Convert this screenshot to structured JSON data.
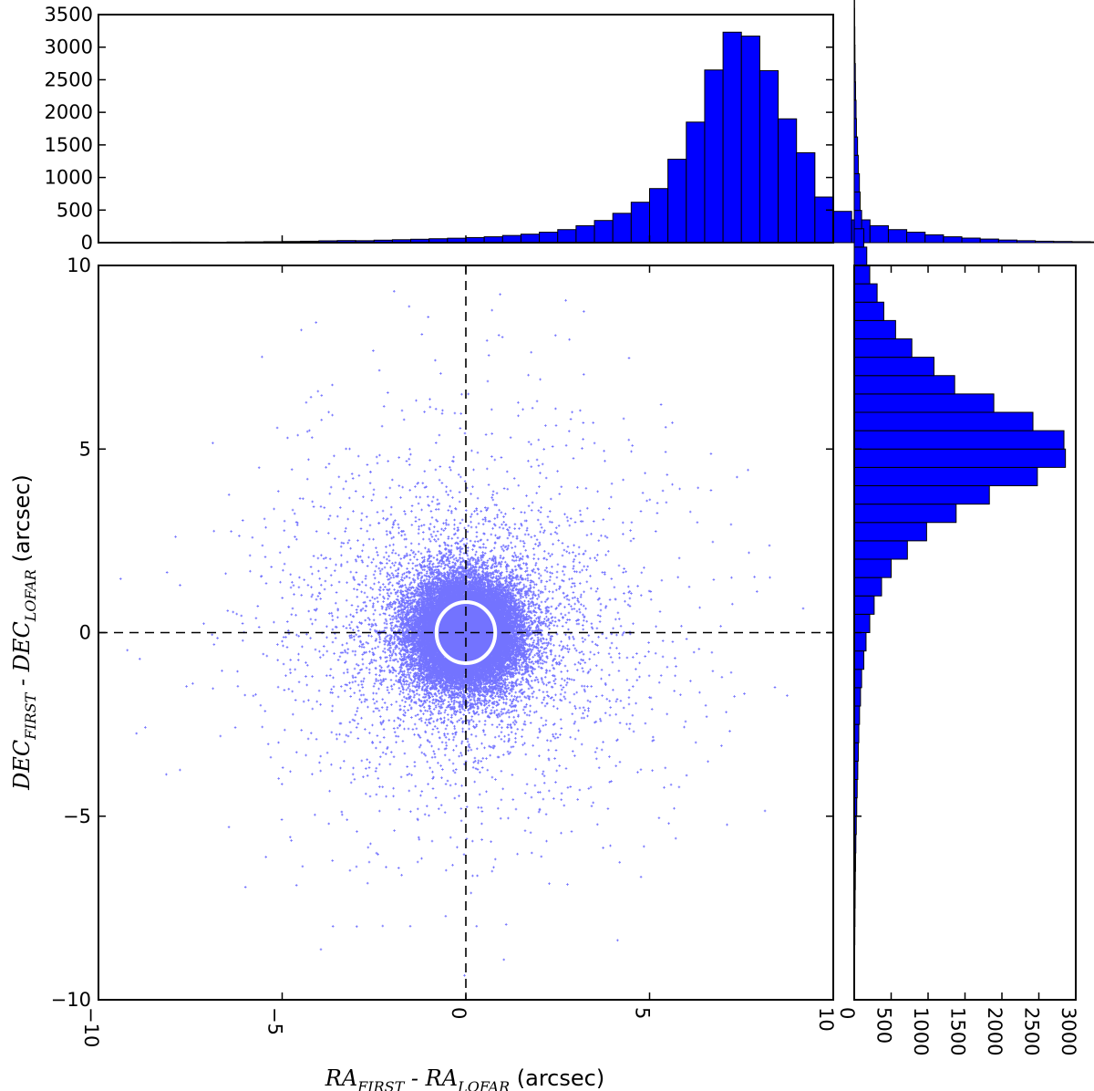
{
  "chart_data": [
    {
      "type": "scatter",
      "name": "positional-offsets",
      "xlabel": {
        "main": "RA",
        "sub1": "FIRST",
        "mid": " - RA",
        "sub2": "LOFAR",
        "unit": " (arcsec)"
      },
      "ylabel": {
        "main": "DEC",
        "sub1": "FIRST",
        "mid": " - DEC",
        "sub2": "LOFAR",
        "unit": " (arcsec)"
      },
      "xlim": [
        -10,
        10
      ],
      "ylim": [
        -10,
        10
      ],
      "xticks": [
        -10,
        -5,
        0,
        5,
        10
      ],
      "xtick_labels": [
        "−10",
        "−5",
        "0",
        "5",
        "10"
      ],
      "yticks": [
        -10,
        -5,
        0,
        5,
        10
      ],
      "ytick_labels": [
        "−10",
        "−5",
        "0",
        "5",
        "10"
      ],
      "point_color": "#0000ff",
      "distribution": {
        "approx_points": 30000,
        "core_sigma_arcsec": 0.7,
        "wing_scale_arcsec": 1.8,
        "max_radius_arcsec": 10
      },
      "reference_lines": {
        "x": 0,
        "y": 0,
        "style": "dashed",
        "color": "#000000"
      },
      "circle": {
        "center": [
          0,
          0
        ],
        "radius": 0.8,
        "color": "#ffffff"
      },
      "grid": false
    },
    {
      "type": "bar",
      "name": "ra-offset-histogram",
      "orientation": "vertical",
      "yticks": [
        0,
        500,
        1000,
        1500,
        2000,
        2500,
        3000,
        3500
      ],
      "ytick_labels": [
        "0",
        "500",
        "1000",
        "1500",
        "2000",
        "2500",
        "3000",
        "3500"
      ],
      "ylim": [
        0,
        3500
      ],
      "xlim": [
        -10,
        10
      ],
      "bin_width": 0.5,
      "bin_start": -8.5,
      "values": [
        5,
        8,
        8,
        5,
        10,
        12,
        15,
        18,
        22,
        28,
        32,
        30,
        38,
        45,
        52,
        60,
        68,
        78,
        90,
        110,
        130,
        160,
        200,
        260,
        340,
        450,
        620,
        830,
        1280,
        1850,
        2650,
        3230,
        3170,
        2640,
        1900,
        1380,
        700,
        480,
        350,
        260,
        200,
        160,
        120,
        90,
        70,
        55,
        40,
        30,
        22,
        18,
        15,
        12,
        10,
        8
      ],
      "bar_color": "#0000ff",
      "edge_color": "#000000",
      "grid": false
    },
    {
      "type": "bar",
      "name": "dec-offset-histogram",
      "orientation": "horizontal",
      "xticks": [
        0,
        500,
        1000,
        1500,
        2000,
        2500,
        3000
      ],
      "xtick_labels": [
        "0",
        "500",
        "1000",
        "1500",
        "2000",
        "2500",
        "3000"
      ],
      "xlim": [
        0,
        3000
      ],
      "ylim": [
        -10,
        10
      ],
      "bin_width": 0.5,
      "bin_start": -9.5,
      "values": [
        5,
        6,
        8,
        10,
        12,
        15,
        18,
        22,
        28,
        34,
        40,
        48,
        55,
        62,
        72,
        85,
        100,
        130,
        160,
        210,
        270,
        370,
        500,
        720,
        980,
        1380,
        1830,
        2480,
        2860,
        2840,
        2420,
        1890,
        1360,
        1080,
        780,
        560,
        400,
        310,
        210,
        170,
        130,
        100,
        80,
        70,
        55,
        45,
        30,
        25,
        18,
        15,
        10,
        8,
        6,
        5
      ],
      "bar_color": "#0000ff",
      "edge_color": "#000000",
      "grid": false
    }
  ]
}
